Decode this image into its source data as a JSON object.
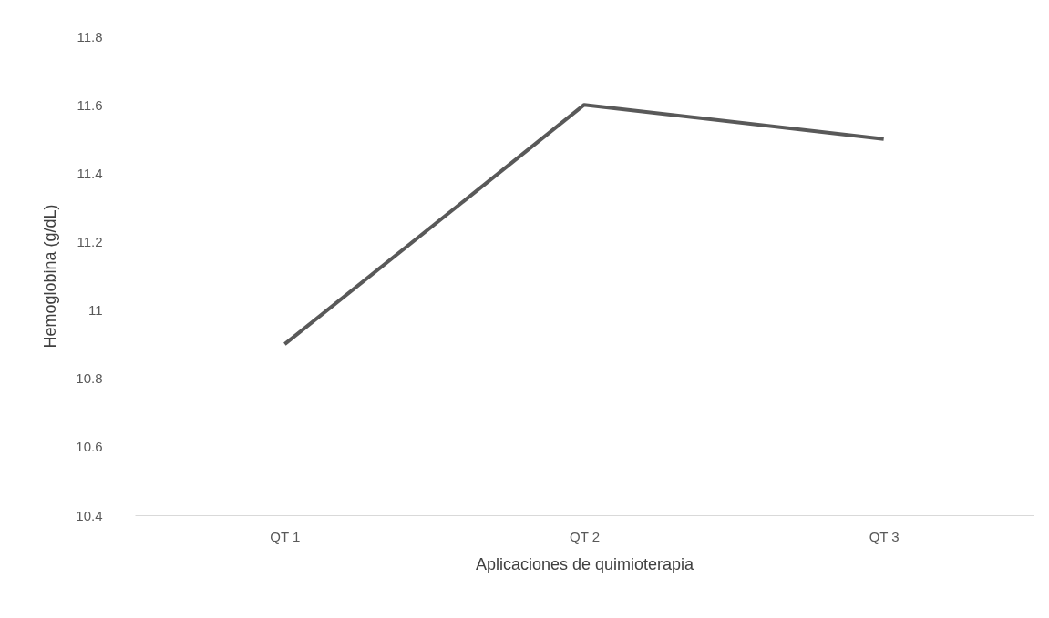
{
  "chart_data": {
    "type": "line",
    "xlabel": "Aplicaciones de quimioterapia",
    "ylabel": "Hemoglobina (g/dL)",
    "categories": [
      "QT 1",
      "QT 2",
      "QT 3"
    ],
    "series": [
      {
        "color": "#595959",
        "values": [
          10.9,
          11.6,
          11.5
        ]
      }
    ],
    "ylim": [
      10.4,
      11.8
    ],
    "yticks": [
      10.4,
      10.6,
      10.8,
      11,
      11.2,
      11.4,
      11.6,
      11.8
    ]
  }
}
